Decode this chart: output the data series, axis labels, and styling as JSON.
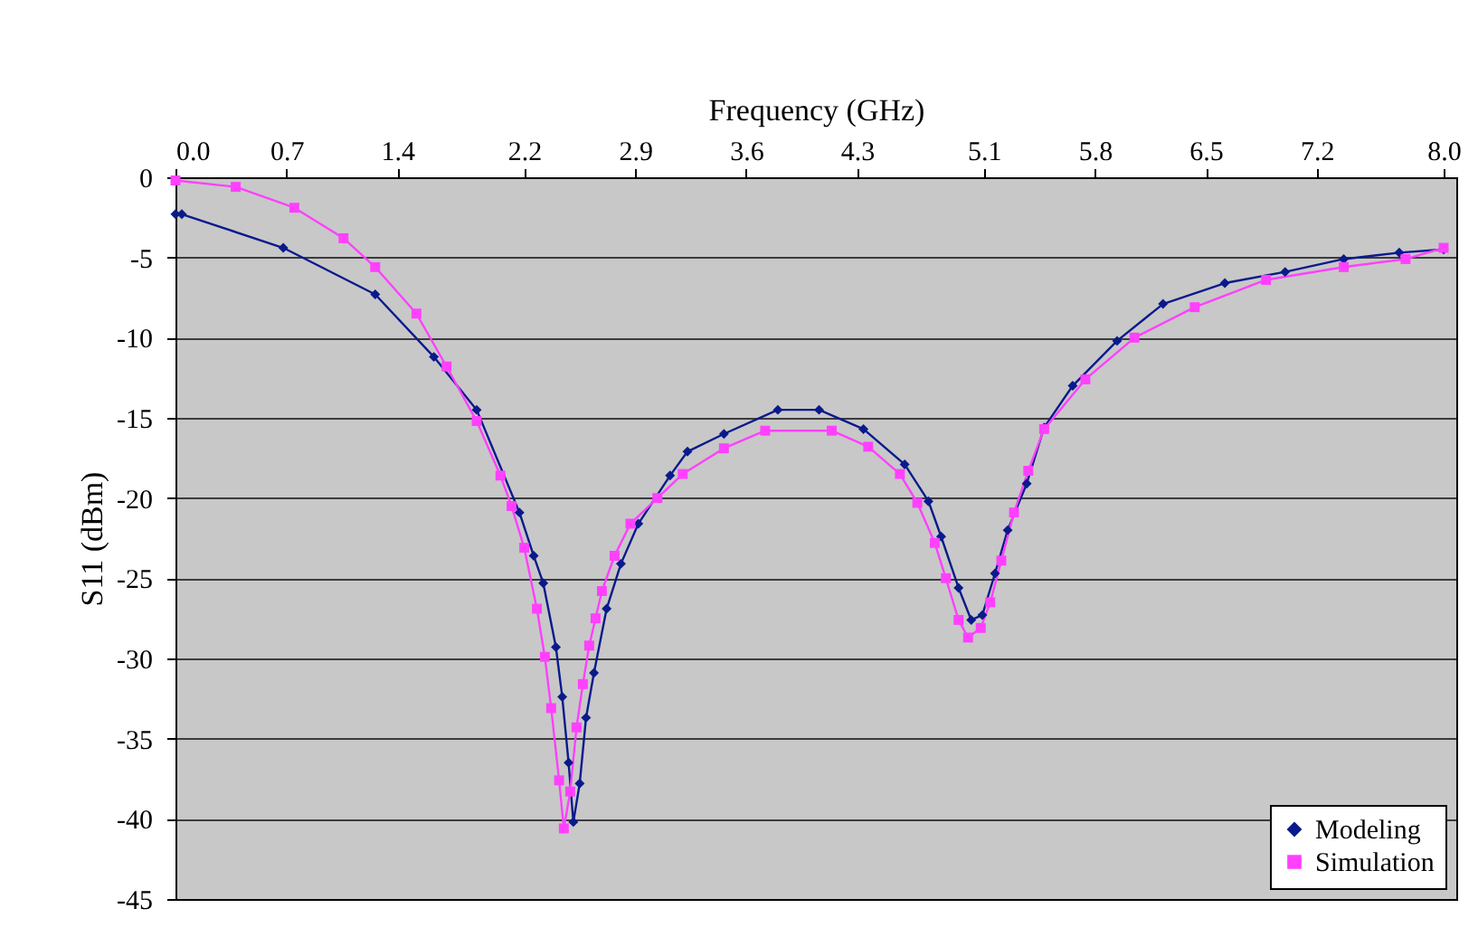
{
  "chart_data": {
    "type": "line",
    "xlabel": "Frequency (GHz)",
    "ylabel": "S11 (dBm)",
    "xlim": [
      0,
      8.08
    ],
    "ylim": [
      -45,
      0
    ],
    "xticks": [
      {
        "value": 0,
        "label": "0.0"
      },
      0.7,
      1.4,
      2.2,
      2.9,
      3.6,
      4.3,
      5.1,
      5.8,
      6.5,
      7.2,
      {
        "value": 8,
        "label": "8.0"
      }
    ],
    "yticks": [
      0,
      -5,
      -10,
      -15,
      -20,
      -25,
      -30,
      -35,
      -40,
      -45
    ],
    "grid": "y",
    "legend": "bottom right",
    "series": [
      {
        "name": "Modeling",
        "color": "#0a1a8c",
        "marker": "diamond",
        "x": [
          0,
          0.04,
          0.68,
          1.26,
          1.63,
          1.9,
          2.17,
          2.26,
          2.32,
          2.4,
          2.44,
          2.48,
          2.51,
          2.55,
          2.59,
          2.64,
          2.72,
          2.81,
          2.92,
          3.12,
          3.23,
          3.46,
          3.8,
          4.06,
          4.34,
          4.6,
          4.75,
          4.83,
          4.94,
          5.02,
          5.09,
          5.17,
          5.25,
          5.37,
          5.48,
          5.66,
          5.94,
          6.23,
          6.62,
          7.0,
          7.37,
          7.72,
          8.0
        ],
        "values": [
          -2.3,
          -2.3,
          -4.4,
          -7.3,
          -11.2,
          -14.5,
          -20.9,
          -23.6,
          -25.3,
          -29.3,
          -32.4,
          -36.5,
          -40.2,
          -37.8,
          -33.7,
          -30.9,
          -26.9,
          -24.1,
          -21.6,
          -18.6,
          -17.1,
          -16.0,
          -14.5,
          -14.5,
          -15.7,
          -17.9,
          -20.2,
          -22.4,
          -25.6,
          -27.6,
          -27.3,
          -24.7,
          -22.0,
          -19.1,
          -15.6,
          -13.0,
          -10.2,
          -7.9,
          -6.6,
          -5.9,
          -5.1,
          -4.7,
          -4.5
        ]
      },
      {
        "name": "Simulation",
        "color": "#ff40ff",
        "marker": "square",
        "x": [
          0,
          0.38,
          0.75,
          1.06,
          1.26,
          1.52,
          1.71,
          1.9,
          2.05,
          2.12,
          2.2,
          2.28,
          2.33,
          2.37,
          2.42,
          2.45,
          2.49,
          2.53,
          2.57,
          2.61,
          2.65,
          2.69,
          2.77,
          2.87,
          3.04,
          3.2,
          3.46,
          3.72,
          4.14,
          4.37,
          4.57,
          4.68,
          4.79,
          4.86,
          4.94,
          5.0,
          5.08,
          5.14,
          5.21,
          5.29,
          5.38,
          5.48,
          5.74,
          6.05,
          6.43,
          6.88,
          7.37,
          7.76,
          8.0
        ],
        "values": [
          -0.2,
          -0.6,
          -1.9,
          -3.8,
          -5.6,
          -8.5,
          -11.8,
          -15.2,
          -18.6,
          -20.5,
          -23.1,
          -26.9,
          -29.9,
          -33.1,
          -37.6,
          -40.6,
          -38.3,
          -34.3,
          -31.6,
          -29.2,
          -27.5,
          -25.8,
          -23.6,
          -21.6,
          -20.0,
          -18.5,
          -16.9,
          -15.8,
          -15.8,
          -16.8,
          -18.5,
          -20.3,
          -22.8,
          -25.0,
          -27.6,
          -28.7,
          -28.1,
          -26.5,
          -23.9,
          -20.9,
          -18.3,
          -15.7,
          -12.6,
          -10.0,
          -8.1,
          -6.4,
          -5.6,
          -5.1,
          -4.4
        ]
      }
    ]
  }
}
